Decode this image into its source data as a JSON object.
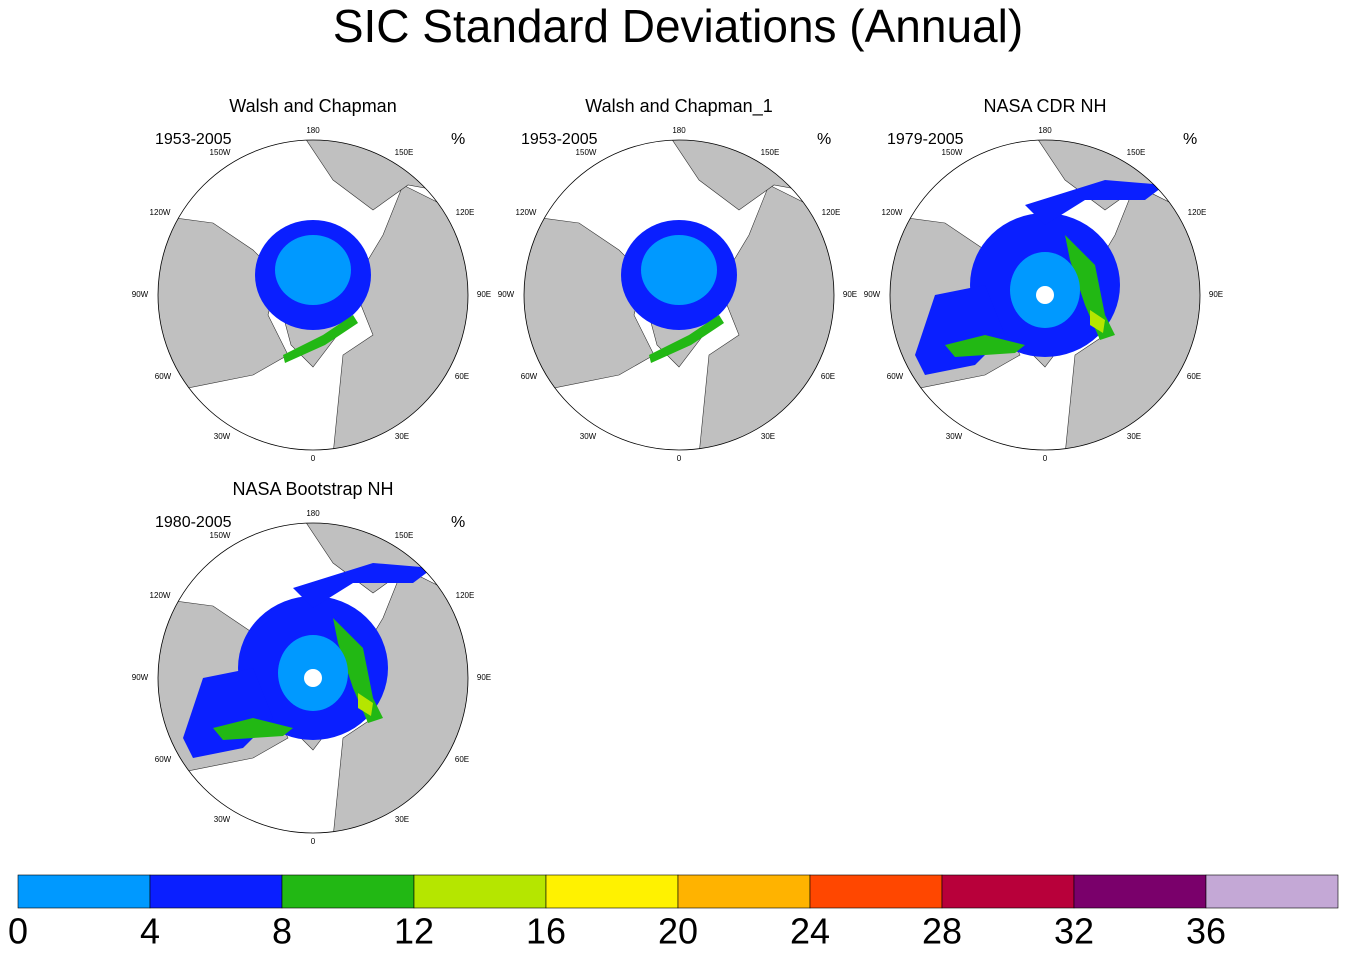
{
  "title": "SIC Standard Deviations (Annual)",
  "longitude_labels": [
    "180",
    "150W",
    "150E",
    "120W",
    "120E",
    "90W",
    "90E",
    "60W",
    "60E",
    "30W",
    "30E",
    "0"
  ],
  "panels": [
    {
      "title": "Walsh and Chapman",
      "period": "1953-2005",
      "unit": "%"
    },
    {
      "title": "Walsh and Chapman_1",
      "period": "1953-2005",
      "unit": "%"
    },
    {
      "title": "NASA CDR NH",
      "period": "1979-2005",
      "unit": "%"
    },
    {
      "title": "NASA Bootstrap NH",
      "period": "1980-2005",
      "unit": "%"
    }
  ],
  "colorbar": {
    "ticks": [
      0,
      4,
      8,
      12,
      16,
      20,
      24,
      28,
      32,
      36
    ],
    "colors": [
      "#0099ff",
      "#0a1fff",
      "#22b814",
      "#b5e600",
      "#fff200",
      "#ffb300",
      "#ff4700",
      "#b8003a",
      "#7a006b",
      "#c4a8d6"
    ]
  }
}
